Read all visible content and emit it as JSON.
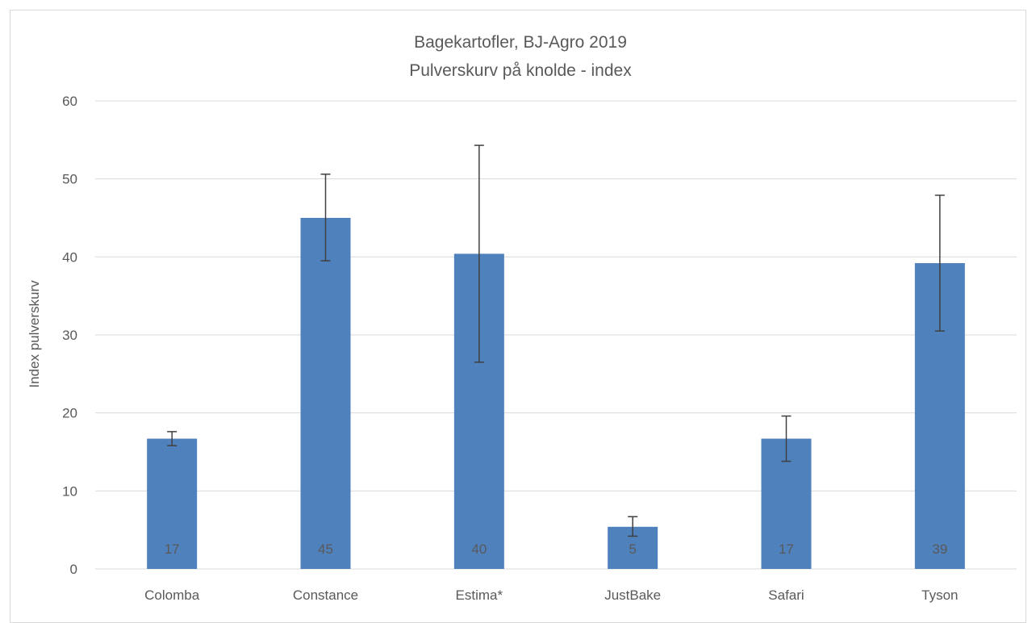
{
  "chart_data": {
    "type": "bar",
    "title_line1": "Bagekartofler, BJ-Agro 2019",
    "title_line2": "Pulverskurv på knolde - index",
    "xlabel": "",
    "ylabel": "Index pulverskurv",
    "ylim": [
      0,
      60
    ],
    "yticks": [
      0,
      10,
      20,
      30,
      40,
      50,
      60
    ],
    "grid": true,
    "categories": [
      "Colomba",
      "Constance",
      "Estima*",
      "JustBake",
      "Safari",
      "Tyson"
    ],
    "values": [
      16.7,
      45.0,
      40.4,
      5.4,
      16.7,
      39.2
    ],
    "data_labels": [
      "17",
      "45",
      "40",
      "5",
      "17",
      "39"
    ],
    "error_low": [
      15.8,
      39.5,
      26.5,
      4.2,
      13.8,
      30.5
    ],
    "error_high": [
      17.6,
      50.6,
      54.3,
      6.7,
      19.6,
      47.9
    ],
    "colors": {
      "bar": "#4f81bd",
      "grid": "#d9d9d9",
      "error": "#404040",
      "text": "#595959"
    }
  }
}
